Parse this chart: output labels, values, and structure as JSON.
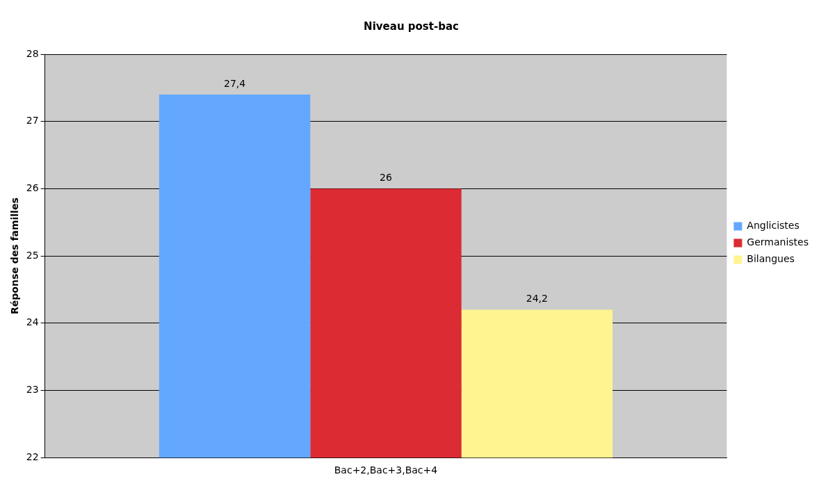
{
  "chart_data": {
    "type": "bar",
    "title": "Niveau post-bac",
    "ylabel": "Réponse des familles",
    "categories": [
      "Bac+2,Bac+3,Bac+4"
    ],
    "series": [
      {
        "name": "Anglicistes",
        "color": "#63a8fe",
        "values": [
          27.4
        ],
        "value_labels": [
          "27,4"
        ]
      },
      {
        "name": "Germanistes",
        "color": "#dc2b32",
        "values": [
          26
        ],
        "value_labels": [
          "26"
        ]
      },
      {
        "name": "Bilangues",
        "color": "#fff48f",
        "values": [
          24.2
        ],
        "value_labels": [
          "24,2"
        ]
      }
    ],
    "ylim": [
      22,
      28
    ],
    "yticks": [
      22,
      23,
      24,
      25,
      26,
      27,
      28
    ],
    "grid": "y",
    "legend": "right"
  }
}
